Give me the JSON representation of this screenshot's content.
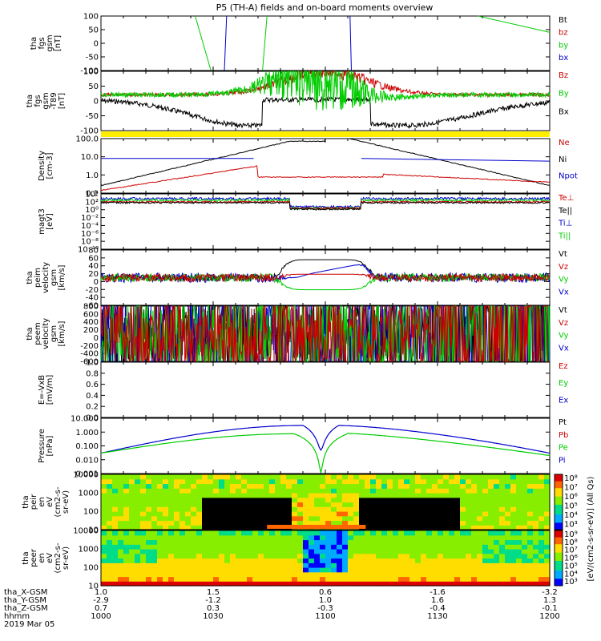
{
  "title": "P5 (TH-A) fields and on-board moments overview",
  "panels": [
    {
      "id": "fgs",
      "ylabel": [
        "tha",
        "fgs",
        "gsm",
        "[nT]"
      ],
      "ticks": [
        "100",
        "50",
        "0",
        "-50",
        "-100"
      ],
      "legend": [
        {
          "t": "Bt",
          "c": "#000000"
        },
        {
          "t": "bz",
          "c": "#cc0000"
        },
        {
          "t": "by",
          "c": "#00cc00"
        },
        {
          "t": "bx",
          "c": "#0000cc"
        }
      ]
    },
    {
      "id": "fgs2",
      "ylabel": [
        "tha",
        "fgs",
        "gsm",
        "-T89",
        "[nT]"
      ],
      "ticks": [
        "100",
        "50",
        "0",
        "-50",
        "-100"
      ],
      "legend": [
        {
          "t": "Bz",
          "c": "#cc0000"
        },
        {
          "t": "By",
          "c": "#00cc00"
        },
        {
          "t": "Bx",
          "c": "#000000"
        }
      ]
    },
    {
      "id": "dens",
      "ylabel": [
        "Density",
        "[cm-3]"
      ],
      "ticks": [
        "100.0",
        "10.0",
        "1.0",
        "0.1"
      ],
      "legend": [
        {
          "t": "Ne",
          "c": "#cc0000"
        },
        {
          "t": "Ni",
          "c": "#000000"
        },
        {
          "t": "Npot",
          "c": "#0000cc"
        }
      ]
    },
    {
      "id": "temp",
      "ylabel": [
        "magt3",
        "[eV]"
      ],
      "ticks": [
        "10⁴",
        "10²",
        "10⁰",
        "10⁻²",
        "10⁻⁴",
        "10⁻⁶",
        "10⁻⁸",
        "10⁻¹⁰"
      ],
      "legend": [
        {
          "t": "Te⊥",
          "c": "#cc0000"
        },
        {
          "t": "Te||",
          "c": "#000000"
        },
        {
          "t": "Ti⊥",
          "c": "#0000cc"
        },
        {
          "t": "Ti||",
          "c": "#00cc00"
        }
      ]
    },
    {
      "id": "vion",
      "ylabel": [
        "tha",
        "peim",
        "velocity",
        "gsm",
        "[km/s]"
      ],
      "ticks": [
        "80",
        "60",
        "40",
        "20",
        "0",
        "-20",
        "-40",
        "-60"
      ],
      "legend": [
        {
          "t": "Vt",
          "c": "#000000"
        },
        {
          "t": "Vz",
          "c": "#cc0000"
        },
        {
          "t": "Vy",
          "c": "#00cc00"
        },
        {
          "t": "Vx",
          "c": "#0000cc"
        }
      ]
    },
    {
      "id": "vele",
      "ylabel": [
        "tha",
        "peem",
        "velocity",
        "gsm",
        "[km/s]"
      ],
      "ticks": [
        "800",
        "600",
        "400",
        "200",
        "0",
        "-200",
        "-400",
        "-600"
      ],
      "legend": [
        {
          "t": "Vt",
          "c": "#000000"
        },
        {
          "t": "Vz",
          "c": "#cc0000"
        },
        {
          "t": "Vy",
          "c": "#00cc00"
        },
        {
          "t": "Vx",
          "c": "#0000cc"
        }
      ]
    },
    {
      "id": "efield",
      "ylabel": [
        "E=-VxB",
        "[mV/m]"
      ],
      "ticks": [
        "1.0",
        "0.8",
        "0.6",
        "0.4",
        "0.2",
        "0.0"
      ],
      "legend": [
        {
          "t": "Ez",
          "c": "#cc0000"
        },
        {
          "t": "Ey",
          "c": "#00cc00"
        },
        {
          "t": "Ex",
          "c": "#0000cc"
        }
      ]
    },
    {
      "id": "press",
      "ylabel": [
        "Pressure",
        "[nPa]"
      ],
      "ticks": [
        "10.000",
        "1.000",
        "0.100",
        "0.010",
        "0.001"
      ],
      "legend": [
        {
          "t": "Pt",
          "c": "#000000"
        },
        {
          "t": "Pb",
          "c": "#cc0000"
        },
        {
          "t": "Pe",
          "c": "#00cc00"
        },
        {
          "t": "Pi",
          "c": "#0000cc"
        }
      ]
    },
    {
      "id": "ispec",
      "ylabel": [
        "tha",
        "peir",
        "en",
        "eV",
        "(cm2-s-",
        "sr-eV)"
      ],
      "ticks": [
        "10000",
        "1000",
        "100",
        "10"
      ],
      "legend": []
    },
    {
      "id": "espec",
      "ylabel": [
        "tha",
        "peer",
        "en",
        "eV",
        "(cm2-s-",
        "sr-eV)"
      ],
      "ticks": [
        "10000",
        "1000",
        "100",
        "10"
      ],
      "legend": []
    }
  ],
  "colorbar": {
    "label": "[eV/(cm2-s-sr-eV)] (All Qs)",
    "ticks_top": [
      "10⁸",
      "10⁷",
      "10⁶",
      "10⁵",
      "10⁴",
      "10³"
    ],
    "ticks_bot": [
      "10⁹",
      "10⁸",
      "10⁷",
      "10⁶",
      "10⁵",
      "10⁴",
      "10³"
    ]
  },
  "xaxis": {
    "row_labels": [
      "tha_X-GSM",
      "tha_Y-GSM",
      "tha_Z-GSM",
      "hhmm",
      "2019 Mar 05"
    ],
    "cols": [
      [
        "1.0",
        "-2.9",
        "0.7",
        "1000"
      ],
      [
        "1.5",
        "-1.2",
        "0.3",
        "1030"
      ],
      [
        "0.6",
        "1.0",
        "-0.3",
        "1100"
      ],
      [
        "-1.6",
        "1.6",
        "-0.4",
        "1130"
      ],
      [
        "-3.2",
        "1.3",
        "-0.1",
        "1200"
      ]
    ]
  },
  "chart_data": [
    {
      "type": "line",
      "title": "P5 (TH-A) fields and on-board moments overview",
      "ylabel": "tha fgs gsm [nT]",
      "ylim": [
        -100,
        100
      ],
      "x": [
        "1000",
        "1030",
        "1100",
        "1130",
        "1200"
      ],
      "series": [
        {
          "name": "by",
          "values": [
            100,
            100,
            -100,
            100,
            50
          ]
        },
        {
          "name": "bx",
          "values": [
            100,
            -100,
            -100,
            100,
            100
          ]
        }
      ]
    },
    {
      "type": "line",
      "ylabel": "tha fgs gsm -T89 [nT]",
      "ylim": [
        -120,
        100
      ],
      "x": [
        "1000",
        "1030",
        "1100",
        "1130",
        "1200"
      ],
      "series": [
        {
          "name": "Bz",
          "values": [
            5,
            20,
            100,
            0,
            0
          ]
        },
        {
          "name": "By",
          "values": [
            0,
            30,
            80,
            -10,
            -5
          ]
        },
        {
          "name": "Bx",
          "values": [
            -15,
            -90,
            -120,
            -60,
            -5
          ]
        }
      ]
    },
    {
      "type": "line",
      "ylabel": "Density [cm-3]",
      "log": true,
      "ylim": [
        0.1,
        200
      ],
      "x": [
        "1000",
        "1030",
        "1100",
        "1130",
        "1200"
      ],
      "series": [
        {
          "name": "Ne",
          "values": [
            0.2,
            1.5,
            1.0,
            1.0,
            0.15
          ]
        },
        {
          "name": "Ni",
          "values": [
            0.2,
            30,
            200,
            20,
            0.2
          ]
        },
        {
          "name": "Npot",
          "values": [
            15,
            15,
            null,
            15,
            10
          ]
        }
      ]
    },
    {
      "type": "line",
      "ylabel": "Pressure [nPa]",
      "log": true,
      "ylim": [
        0.001,
        10
      ],
      "x": [
        "1000",
        "1030",
        "1100",
        "1130",
        "1200"
      ],
      "series": [
        {
          "name": "Pi",
          "values": [
            0.03,
            2,
            0.02,
            3,
            0.03
          ]
        },
        {
          "name": "Pe",
          "values": [
            0.03,
            0.5,
            0.001,
            0.8,
            0.02
          ]
        }
      ]
    }
  ]
}
